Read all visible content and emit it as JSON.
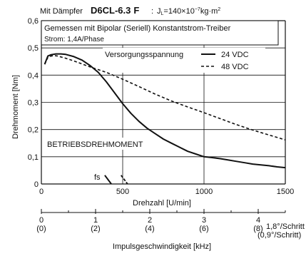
{
  "chart_data": {
    "type": "line",
    "title_prefix": "Mit Dämpfer",
    "title_model": "D6CL-6.3",
    "title_suffix": "F",
    "inertia_label": "J",
    "inertia_sub": "L",
    "inertia_value": "=140×10",
    "inertia_exp": "−7",
    "inertia_unit": "kg·m",
    "inertia_unit_exp": "2",
    "subtitle_line1": "Gemessen mit Bipolar (Seriell) Konstantstrom-Treiber",
    "subtitle_line2": "Strom: 1,4A/Phase",
    "legend_title": "Versorgungsspannung",
    "region_label": "BETRIEBSDREHMOMENT",
    "fs_label": "fs",
    "xlabel": "Drehzahl [U/min]",
    "ylabel": "Drehmoment [Nm]",
    "xlim": [
      0,
      1500
    ],
    "ylim": [
      0,
      0.6
    ],
    "x_ticks": [
      0,
      500,
      1000,
      1500
    ],
    "x_tick_labels": [
      "0",
      "500",
      "1000",
      "1500"
    ],
    "y_ticks": [
      0,
      0.1,
      0.2,
      0.3,
      0.4,
      0.5,
      0.6
    ],
    "y_tick_labels": [
      "0",
      "0,1",
      "0,2",
      "0,3",
      "0,4",
      "0,5",
      "0,6"
    ],
    "grid": true,
    "series": [
      {
        "name": "24 VDC",
        "style": "solid",
        "x": [
          20,
          40,
          60,
          90,
          120,
          150,
          200,
          250,
          300,
          350,
          400,
          450,
          500,
          550,
          600,
          650,
          700,
          750,
          800,
          850,
          900,
          950,
          1000,
          1050,
          1100,
          1150,
          1200,
          1250,
          1300,
          1350,
          1400,
          1450,
          1500
        ],
        "y": [
          0.44,
          0.47,
          0.475,
          0.478,
          0.478,
          0.476,
          0.468,
          0.455,
          0.435,
          0.41,
          0.375,
          0.335,
          0.295,
          0.26,
          0.23,
          0.205,
          0.185,
          0.165,
          0.15,
          0.135,
          0.12,
          0.11,
          0.1,
          0.097,
          0.093,
          0.088,
          0.083,
          0.078,
          0.073,
          0.07,
          0.067,
          0.063,
          0.06
        ]
      },
      {
        "name": "48 VDC",
        "style": "dashed",
        "x": [
          20,
          40,
          60,
          80,
          100,
          150,
          200,
          300,
          400,
          500,
          600,
          700,
          800,
          900,
          1000,
          1100,
          1200,
          1300,
          1400,
          1500
        ],
        "y": [
          0.44,
          0.465,
          0.47,
          0.472,
          0.47,
          0.462,
          0.452,
          0.43,
          0.41,
          0.385,
          0.358,
          0.33,
          0.305,
          0.283,
          0.262,
          0.24,
          0.218,
          0.198,
          0.18,
          0.162
        ]
      }
    ],
    "start_markers": [
      {
        "name": "fs 24 VDC",
        "x": [
          390,
          430
        ],
        "y": [
          0.032,
          0.0
        ]
      },
      {
        "name": "fs 48 VDC",
        "x": [
          490,
          530
        ],
        "y": [
          0.032,
          0.0
        ]
      }
    ],
    "secondary_axis": {
      "label": "Impulsgeschwindigkeit [kHz]",
      "ticks_full": [
        "0",
        "1",
        "2",
        "3",
        "4"
      ],
      "ticks_half": [
        "(0)",
        "(2)",
        "(4)",
        "(6)",
        "(8)"
      ],
      "unit_full": "1,8°/Schritt",
      "unit_half": "(0,9°/Schritt)",
      "range_khz_full": [
        0,
        4.5
      ]
    }
  }
}
